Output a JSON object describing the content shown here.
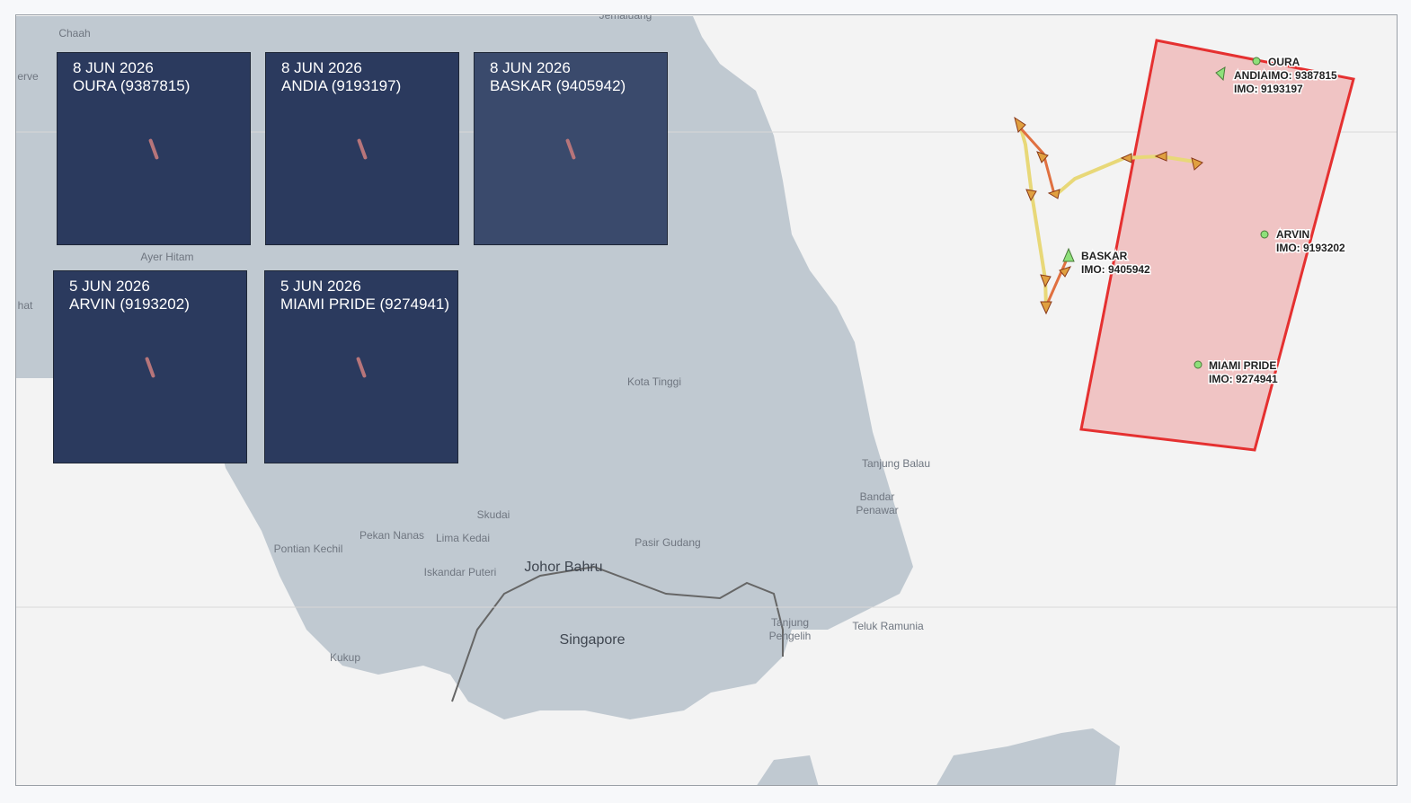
{
  "place_labels": [
    "Jemaluang",
    "Chaah",
    "erve",
    "Ayer Hitam",
    "hat",
    "Kota Tinggi",
    "Tanjung Balau",
    "Bandar",
    "Penawar",
    "Skudai",
    "Pekan Nanas",
    "Lima Kedai",
    "Pontian Kechil",
    "Pasir Gudang",
    "Iskandar Puteri",
    "Johor Bahru",
    "Singapore",
    "Kukup",
    "Tanjung",
    "Pengelih",
    "Teluk Ramunia"
  ],
  "image_panels": [
    {
      "date": "8 JUN 2026",
      "vessel": "OURA (9387815)"
    },
    {
      "date": "8 JUN 2026",
      "vessel": "ANDIA (9193197)"
    },
    {
      "date": "8 JUN 2026",
      "vessel": "BASKAR (9405942)"
    },
    {
      "date": "5 JUN 2026",
      "vessel": "ARVIN (9193202)"
    },
    {
      "date": "5 JUN  2026",
      "vessel": "MIAMI PRIDE (9274941)"
    }
  ],
  "vessels": [
    {
      "name": "OURA",
      "imo": "IMO: 9387815"
    },
    {
      "name": "ANDIA",
      "imo": "IMO: 9193197"
    },
    {
      "name": "BASKAR",
      "imo": "IMO: 9405942"
    },
    {
      "name": "ARVIN",
      "imo": "IMO: 9193202"
    },
    {
      "name": "MIAMI PRIDE",
      "imo": "IMO: 9274941"
    }
  ]
}
